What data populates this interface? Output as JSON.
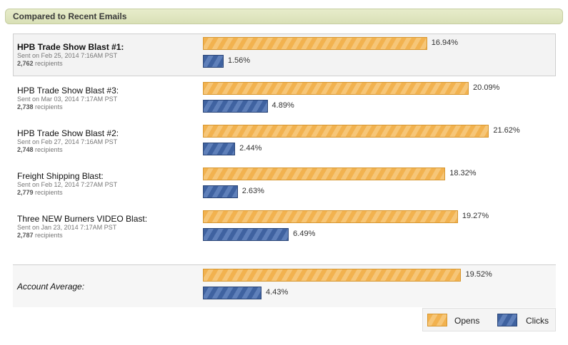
{
  "header": {
    "title": "Compared to Recent Emails"
  },
  "chart_data": {
    "type": "bar",
    "series": [
      {
        "name": "Opens",
        "key": "opens"
      },
      {
        "name": "Clicks",
        "key": "clicks"
      }
    ],
    "value_max": 27,
    "rows": [
      {
        "name": "HPB Trade Show Blast #1:",
        "sent": "Sent on Feb 25, 2014 7:16AM PST",
        "recipients": "2,762",
        "opens": 16.94,
        "clicks": 1.56,
        "opens_label": "16.94%",
        "clicks_label": "1.56%"
      },
      {
        "name": "HPB Trade Show Blast #3:",
        "sent": "Sent on Mar 03, 2014 7:17AM PST",
        "recipients": "2,738",
        "opens": 20.09,
        "clicks": 4.89,
        "opens_label": "20.09%",
        "clicks_label": "4.89%"
      },
      {
        "name": "HPB Trade Show Blast #2:",
        "sent": "Sent on Feb 27, 2014 7:16AM PST",
        "recipients": "2,748",
        "opens": 21.62,
        "clicks": 2.44,
        "opens_label": "21.62%",
        "clicks_label": "2.44%"
      },
      {
        "name": "Freight Shipping Blast:",
        "sent": "Sent on Feb 12, 2014 7:27AM PST",
        "recipients": "2,779",
        "opens": 18.32,
        "clicks": 2.63,
        "opens_label": "18.32%",
        "clicks_label": "2.63%"
      },
      {
        "name": "Three NEW Burners VIDEO Blast:",
        "sent": "Sent on Jan 23, 2014 7:17AM PST",
        "recipients": "2,787",
        "opens": 19.27,
        "clicks": 6.49,
        "opens_label": "19.27%",
        "clicks_label": "6.49%"
      }
    ],
    "average": {
      "name": "Account Average:",
      "opens": 19.52,
      "clicks": 4.43,
      "opens_label": "19.52%",
      "clicks_label": "4.43%"
    },
    "recipients_suffix": "recipients",
    "legend": {
      "opens": "Opens",
      "clicks": "Clicks",
      "placement": "bottom-right"
    }
  },
  "colors": {
    "opens": "#f2b24f",
    "clicks": "#3f62a0"
  }
}
